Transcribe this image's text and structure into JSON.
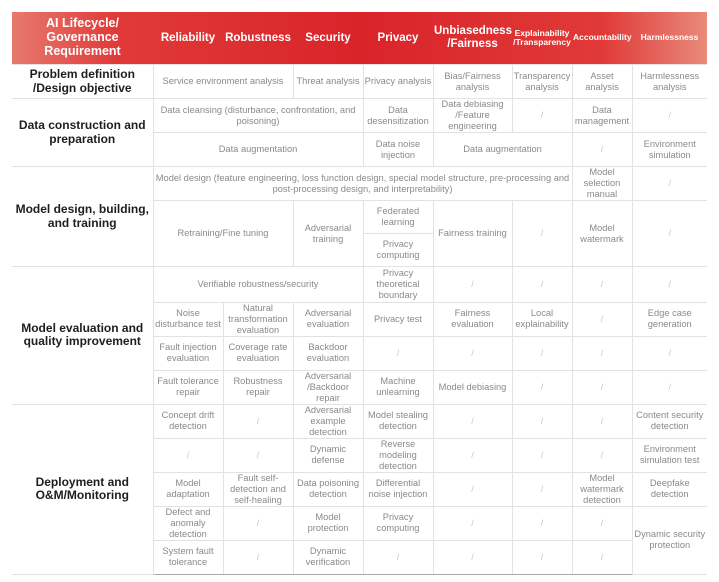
{
  "header": [
    "AI Lifecycle/ Governance Requirement",
    "Reliability",
    "Robustness",
    "Security",
    "Privacy",
    "Unbiasedness /Fairness",
    "Explainability /Transparency",
    "Accountability",
    "Harmlessness"
  ],
  "colors": {
    "header_red": "#dd2a2e",
    "label_text": "#1e1e1e",
    "cell_text": "#8a8a8a",
    "grid": "#e2e2e2"
  },
  "rows": [
    {
      "section": "problem",
      "cells": [
        {
          "t": "Problem definition /Design objective",
          "label": true
        },
        {
          "t": "Service environment analysis",
          "cs": 2
        },
        {
          "t": "Threat analysis"
        },
        {
          "t": "Privacy analysis"
        },
        {
          "t": "Bias/Fairness analysis"
        },
        {
          "t": "Transparency analysis"
        },
        {
          "t": "Asset analysis"
        },
        {
          "t": "Harmlessness analysis"
        }
      ]
    },
    {
      "section": "data",
      "cells": [
        {
          "t": "Data construction and preparation",
          "label": true,
          "rs": 2
        },
        {
          "t": "Data cleansing (disturbance, confrontation, and poisoning)",
          "cs": 3
        },
        {
          "t": "Data desensitization"
        },
        {
          "t": "Data debiasing /Feature engineering"
        },
        {
          "t": "/"
        },
        {
          "t": "Data management"
        },
        {
          "t": "/"
        }
      ]
    },
    {
      "cells": [
        {
          "t": "Data augmentation",
          "cs": 3
        },
        {
          "t": "Data noise injection"
        },
        {
          "t": "Data augmentation",
          "cs": 2
        },
        {
          "t": "/"
        },
        {
          "t": "Environment simulation"
        }
      ]
    },
    {
      "section": "model",
      "cells": [
        {
          "t": "Model design, building, and training",
          "label": true,
          "rs": 3
        },
        {
          "t": "Model design (feature engineering, loss function design, special model structure, pre-processing and post-processing design, and interpretability)",
          "cs": 6
        },
        {
          "t": "Model selection manual"
        },
        {
          "t": "/"
        }
      ]
    },
    {
      "cells": [
        {
          "t": "Retraining/Fine tuning",
          "cs": 2,
          "rs": 2
        },
        {
          "t": "Adversarial training",
          "rs": 2
        },
        {
          "t": "Federated learning"
        },
        {
          "t": "Fairness training",
          "rs": 2
        },
        {
          "t": "/",
          "rs": 2
        },
        {
          "t": "Model watermark",
          "rs": 2
        },
        {
          "t": "/",
          "rs": 2
        }
      ]
    },
    {
      "cells": [
        {
          "t": "Privacy computing"
        }
      ]
    },
    {
      "section": "eval",
      "cells": [
        {
          "t": "Model evaluation and quality improvement",
          "label": true,
          "rs": 4
        },
        {
          "t": "Verifiable robustness/security",
          "cs": 3
        },
        {
          "t": "Privacy theoretical boundary"
        },
        {
          "t": "/"
        },
        {
          "t": "/"
        },
        {
          "t": "/"
        },
        {
          "t": "/"
        }
      ]
    },
    {
      "cells": [
        {
          "t": "Noise disturbance test"
        },
        {
          "t": "Natural transformation evaluation"
        },
        {
          "t": "Adversarial evaluation"
        },
        {
          "t": "Privacy test"
        },
        {
          "t": "Fairness evaluation"
        },
        {
          "t": "Local explainability"
        },
        {
          "t": "/"
        },
        {
          "t": "Edge case generation"
        }
      ]
    },
    {
      "cells": [
        {
          "t": "Fault injection evaluation"
        },
        {
          "t": "Coverage rate evaluation"
        },
        {
          "t": "Backdoor evaluation"
        },
        {
          "t": "/"
        },
        {
          "t": "/"
        },
        {
          "t": "/"
        },
        {
          "t": "/"
        },
        {
          "t": "/"
        }
      ]
    },
    {
      "cells": [
        {
          "t": "Fault tolerance repair"
        },
        {
          "t": "Robustness repair"
        },
        {
          "t": "Adversarial /Backdoor repair"
        },
        {
          "t": "Machine unlearning"
        },
        {
          "t": "Model debiasing"
        },
        {
          "t": "/"
        },
        {
          "t": "/"
        },
        {
          "t": "/"
        }
      ]
    },
    {
      "section": "deploy",
      "cells": [
        {
          "t": "Deployment and O&M/Monitoring",
          "label": true,
          "rs": 5
        },
        {
          "t": "Concept drift detection"
        },
        {
          "t": "/"
        },
        {
          "t": "Adversarial example detection"
        },
        {
          "t": "Model stealing detection"
        },
        {
          "t": "/"
        },
        {
          "t": "/"
        },
        {
          "t": "/"
        },
        {
          "t": "Content security detection"
        }
      ]
    },
    {
      "cells": [
        {
          "t": "/"
        },
        {
          "t": "/"
        },
        {
          "t": "Dynamic defense"
        },
        {
          "t": "Reverse modeling detection"
        },
        {
          "t": "/"
        },
        {
          "t": "/"
        },
        {
          "t": "/"
        },
        {
          "t": "Environment simulation test"
        }
      ]
    },
    {
      "cells": [
        {
          "t": "Model adaptation"
        },
        {
          "t": "Fault self-detection and self-healing"
        },
        {
          "t": "Data poisoning detection"
        },
        {
          "t": "Differential noise injection"
        },
        {
          "t": "/"
        },
        {
          "t": "/"
        },
        {
          "t": "Model watermark detection"
        },
        {
          "t": "Deepfake detection"
        }
      ]
    },
    {
      "cells": [
        {
          "t": "Defect and anomaly detection"
        },
        {
          "t": "/"
        },
        {
          "t": "Model protection"
        },
        {
          "t": "Privacy computing"
        },
        {
          "t": "/"
        },
        {
          "t": "/"
        },
        {
          "t": "/"
        },
        {
          "t": "Dynamic security protection",
          "rs": 2
        }
      ]
    },
    {
      "end": true,
      "cells": [
        {
          "t": "System fault tolerance"
        },
        {
          "t": "/"
        },
        {
          "t": "Dynamic verification"
        },
        {
          "t": "/"
        },
        {
          "t": "/"
        },
        {
          "t": "/"
        },
        {
          "t": "/"
        }
      ]
    }
  ]
}
